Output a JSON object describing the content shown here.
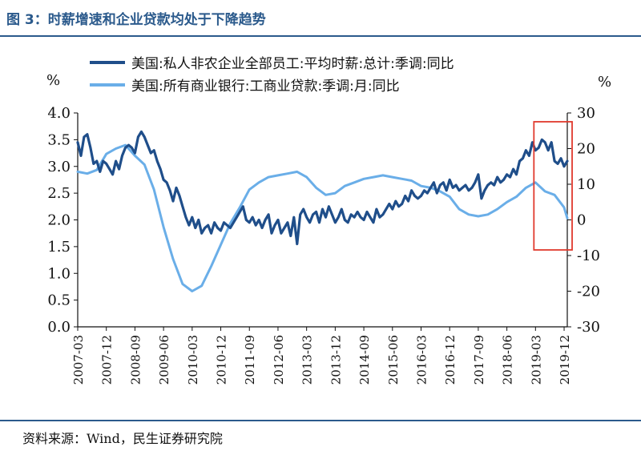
{
  "header": {
    "title": "图 3：时薪增速和企业贷款均处于下降趋势"
  },
  "footer": {
    "source": "资料来源：Wind，民生证券研究院"
  },
  "colors": {
    "wage": "#1f4e8a",
    "loans": "#6aaee8",
    "highlight": "#e03a2e",
    "header": "#2b5a8c"
  },
  "chart_data": {
    "type": "line",
    "left_unit": "%",
    "right_unit": "%",
    "ylim_left": [
      0,
      4
    ],
    "ylim_right": [
      -30,
      30
    ],
    "yticks_left": [
      "0.0",
      "0.5",
      "1.0",
      "1.5",
      "2.0",
      "2.5",
      "3.0",
      "3.5",
      "4.0"
    ],
    "yticks_right": [
      "-30",
      "-20",
      "-10",
      "0",
      "10",
      "20",
      "30"
    ],
    "xticks": [
      "2007-03",
      "2007-12",
      "2008-09",
      "2009-06",
      "2010-03",
      "2010-12",
      "2011-09",
      "2012-06",
      "2013-03",
      "2013-12",
      "2014-09",
      "2015-06",
      "2016-03",
      "2016-12",
      "2017-09",
      "2018-06",
      "2019-03",
      "2019-12"
    ],
    "highlight_range": [
      "2019-03",
      "2019-12"
    ],
    "series": [
      {
        "name": "美国:私人非农企业全部员工:平均时薪:总计:季调:同比",
        "axis": "left",
        "points": [
          [
            "2007-03",
            3.45
          ],
          [
            "2007-04",
            3.2
          ],
          [
            "2007-05",
            3.55
          ],
          [
            "2007-06",
            3.6
          ],
          [
            "2007-07",
            3.35
          ],
          [
            "2007-08",
            3.05
          ],
          [
            "2007-09",
            3.1
          ],
          [
            "2007-10",
            2.9
          ],
          [
            "2007-11",
            3.1
          ],
          [
            "2007-12",
            3.05
          ],
          [
            "2008-01",
            2.95
          ],
          [
            "2008-02",
            2.85
          ],
          [
            "2008-03",
            3.1
          ],
          [
            "2008-04",
            2.95
          ],
          [
            "2008-05",
            3.2
          ],
          [
            "2008-06",
            3.35
          ],
          [
            "2008-07",
            3.4
          ],
          [
            "2008-08",
            3.35
          ],
          [
            "2008-09",
            3.25
          ],
          [
            "2008-10",
            3.55
          ],
          [
            "2008-11",
            3.65
          ],
          [
            "2008-12",
            3.55
          ],
          [
            "2009-01",
            3.4
          ],
          [
            "2009-02",
            3.25
          ],
          [
            "2009-03",
            3.3
          ],
          [
            "2009-04",
            3.1
          ],
          [
            "2009-05",
            2.95
          ],
          [
            "2009-06",
            2.75
          ],
          [
            "2009-07",
            2.7
          ],
          [
            "2009-08",
            2.55
          ],
          [
            "2009-09",
            2.35
          ],
          [
            "2009-10",
            2.6
          ],
          [
            "2009-11",
            2.45
          ],
          [
            "2009-12",
            2.25
          ],
          [
            "2010-01",
            2.05
          ],
          [
            "2010-02",
            1.9
          ],
          [
            "2010-03",
            2.05
          ],
          [
            "2010-04",
            1.85
          ],
          [
            "2010-05",
            2.0
          ],
          [
            "2010-06",
            1.75
          ],
          [
            "2010-07",
            1.85
          ],
          [
            "2010-08",
            1.9
          ],
          [
            "2010-09",
            1.75
          ],
          [
            "2010-10",
            1.95
          ],
          [
            "2010-11",
            1.85
          ],
          [
            "2010-12",
            1.8
          ],
          [
            "2011-01",
            1.95
          ],
          [
            "2011-02",
            1.9
          ],
          [
            "2011-03",
            1.85
          ],
          [
            "2011-04",
            1.95
          ],
          [
            "2011-05",
            2.05
          ],
          [
            "2011-06",
            2.15
          ],
          [
            "2011-07",
            2.25
          ],
          [
            "2011-08",
            2.0
          ],
          [
            "2011-09",
            1.95
          ],
          [
            "2011-10",
            2.05
          ],
          [
            "2011-11",
            1.9
          ],
          [
            "2011-12",
            2.0
          ],
          [
            "2012-01",
            1.85
          ],
          [
            "2012-02",
            2.0
          ],
          [
            "2012-03",
            2.1
          ],
          [
            "2012-04",
            1.75
          ],
          [
            "2012-05",
            1.9
          ],
          [
            "2012-06",
            2.0
          ],
          [
            "2012-07",
            1.75
          ],
          [
            "2012-08",
            1.85
          ],
          [
            "2012-09",
            1.95
          ],
          [
            "2012-10",
            1.7
          ],
          [
            "2012-11",
            2.05
          ],
          [
            "2012-12",
            1.55
          ],
          [
            "2013-01",
            2.1
          ],
          [
            "2013-02",
            2.2
          ],
          [
            "2013-03",
            2.05
          ],
          [
            "2013-04",
            1.95
          ],
          [
            "2013-05",
            2.1
          ],
          [
            "2013-06",
            2.15
          ],
          [
            "2013-07",
            1.95
          ],
          [
            "2013-08",
            2.2
          ],
          [
            "2013-09",
            2.05
          ],
          [
            "2013-10",
            2.25
          ],
          [
            "2013-11",
            2.1
          ],
          [
            "2013-12",
            1.95
          ],
          [
            "2014-01",
            2.05
          ],
          [
            "2014-02",
            2.2
          ],
          [
            "2014-03",
            2.0
          ],
          [
            "2014-04",
            1.95
          ],
          [
            "2014-05",
            2.1
          ],
          [
            "2014-06",
            2.05
          ],
          [
            "2014-07",
            2.15
          ],
          [
            "2014-08",
            2.05
          ],
          [
            "2014-09",
            2.0
          ],
          [
            "2014-10",
            2.15
          ],
          [
            "2014-11",
            2.05
          ],
          [
            "2014-12",
            1.95
          ],
          [
            "2015-01",
            2.2
          ],
          [
            "2015-02",
            2.05
          ],
          [
            "2015-03",
            2.1
          ],
          [
            "2015-04",
            2.2
          ],
          [
            "2015-05",
            2.3
          ],
          [
            "2015-06",
            2.2
          ],
          [
            "2015-07",
            2.35
          ],
          [
            "2015-08",
            2.25
          ],
          [
            "2015-09",
            2.3
          ],
          [
            "2015-10",
            2.45
          ],
          [
            "2015-11",
            2.35
          ],
          [
            "2015-12",
            2.55
          ],
          [
            "2016-01",
            2.45
          ],
          [
            "2016-02",
            2.4
          ],
          [
            "2016-03",
            2.45
          ],
          [
            "2016-04",
            2.55
          ],
          [
            "2016-05",
            2.5
          ],
          [
            "2016-06",
            2.6
          ],
          [
            "2016-07",
            2.7
          ],
          [
            "2016-08",
            2.5
          ],
          [
            "2016-09",
            2.65
          ],
          [
            "2016-10",
            2.7
          ],
          [
            "2016-11",
            2.55
          ],
          [
            "2016-12",
            2.75
          ],
          [
            "2017-01",
            2.6
          ],
          [
            "2017-02",
            2.65
          ],
          [
            "2017-03",
            2.55
          ],
          [
            "2017-04",
            2.6
          ],
          [
            "2017-05",
            2.65
          ],
          [
            "2017-06",
            2.55
          ],
          [
            "2017-07",
            2.6
          ],
          [
            "2017-08",
            2.7
          ],
          [
            "2017-09",
            2.85
          ],
          [
            "2017-10",
            2.4
          ],
          [
            "2017-11",
            2.55
          ],
          [
            "2017-12",
            2.65
          ],
          [
            "2018-01",
            2.7
          ],
          [
            "2018-02",
            2.65
          ],
          [
            "2018-03",
            2.8
          ],
          [
            "2018-04",
            2.7
          ],
          [
            "2018-05",
            2.75
          ],
          [
            "2018-06",
            2.85
          ],
          [
            "2018-07",
            2.8
          ],
          [
            "2018-08",
            2.95
          ],
          [
            "2018-09",
            2.85
          ],
          [
            "2018-10",
            3.1
          ],
          [
            "2018-11",
            3.15
          ],
          [
            "2018-12",
            3.3
          ],
          [
            "2019-01",
            3.2
          ],
          [
            "2019-02",
            3.45
          ],
          [
            "2019-03",
            3.3
          ],
          [
            "2019-04",
            3.35
          ],
          [
            "2019-05",
            3.5
          ],
          [
            "2019-06",
            3.45
          ],
          [
            "2019-07",
            3.3
          ],
          [
            "2019-08",
            3.45
          ],
          [
            "2019-09",
            3.1
          ],
          [
            "2019-10",
            3.05
          ],
          [
            "2019-11",
            3.15
          ],
          [
            "2019-12",
            3.0
          ],
          [
            "2020-01",
            3.1
          ]
        ]
      },
      {
        "name": "美国:所有商业银行:工商业贷款:季调:月:同比",
        "axis": "right",
        "points": [
          [
            "2007-03",
            13.5
          ],
          [
            "2007-06",
            13.0
          ],
          [
            "2007-09",
            14.0
          ],
          [
            "2007-12",
            18.5
          ],
          [
            "2008-03",
            20.0
          ],
          [
            "2008-06",
            21.0
          ],
          [
            "2008-09",
            18.0
          ],
          [
            "2008-12",
            15.5
          ],
          [
            "2009-03",
            8.5
          ],
          [
            "2009-06",
            -2.0
          ],
          [
            "2009-09",
            -11.0
          ],
          [
            "2009-12",
            -18.0
          ],
          [
            "2010-03",
            -20.0
          ],
          [
            "2010-06",
            -18.5
          ],
          [
            "2010-09",
            -13.0
          ],
          [
            "2010-12",
            -7.0
          ],
          [
            "2011-03",
            -1.0
          ],
          [
            "2011-06",
            3.5
          ],
          [
            "2011-09",
            8.5
          ],
          [
            "2011-12",
            10.5
          ],
          [
            "2012-03",
            12.0
          ],
          [
            "2012-06",
            12.5
          ],
          [
            "2012-09",
            13.0
          ],
          [
            "2012-12",
            13.5
          ],
          [
            "2013-03",
            12.0
          ],
          [
            "2013-06",
            9.0
          ],
          [
            "2013-09",
            7.0
          ],
          [
            "2013-12",
            7.5
          ],
          [
            "2014-03",
            9.5
          ],
          [
            "2014-06",
            10.5
          ],
          [
            "2014-09",
            11.5
          ],
          [
            "2014-12",
            12.0
          ],
          [
            "2015-03",
            12.5
          ],
          [
            "2015-06",
            12.0
          ],
          [
            "2015-09",
            11.5
          ],
          [
            "2015-12",
            11.0
          ],
          [
            "2016-03",
            9.5
          ],
          [
            "2016-06",
            9.0
          ],
          [
            "2016-09",
            8.0
          ],
          [
            "2016-12",
            6.5
          ],
          [
            "2017-03",
            3.0
          ],
          [
            "2017-06",
            1.5
          ],
          [
            "2017-09",
            1.0
          ],
          [
            "2017-12",
            1.5
          ],
          [
            "2018-03",
            3.0
          ],
          [
            "2018-06",
            5.0
          ],
          [
            "2018-09",
            6.5
          ],
          [
            "2018-12",
            9.0
          ],
          [
            "2019-03",
            10.5
          ],
          [
            "2019-06",
            8.0
          ],
          [
            "2019-09",
            7.0
          ],
          [
            "2019-12",
            3.5
          ],
          [
            "2020-01",
            0.5
          ]
        ]
      }
    ]
  }
}
